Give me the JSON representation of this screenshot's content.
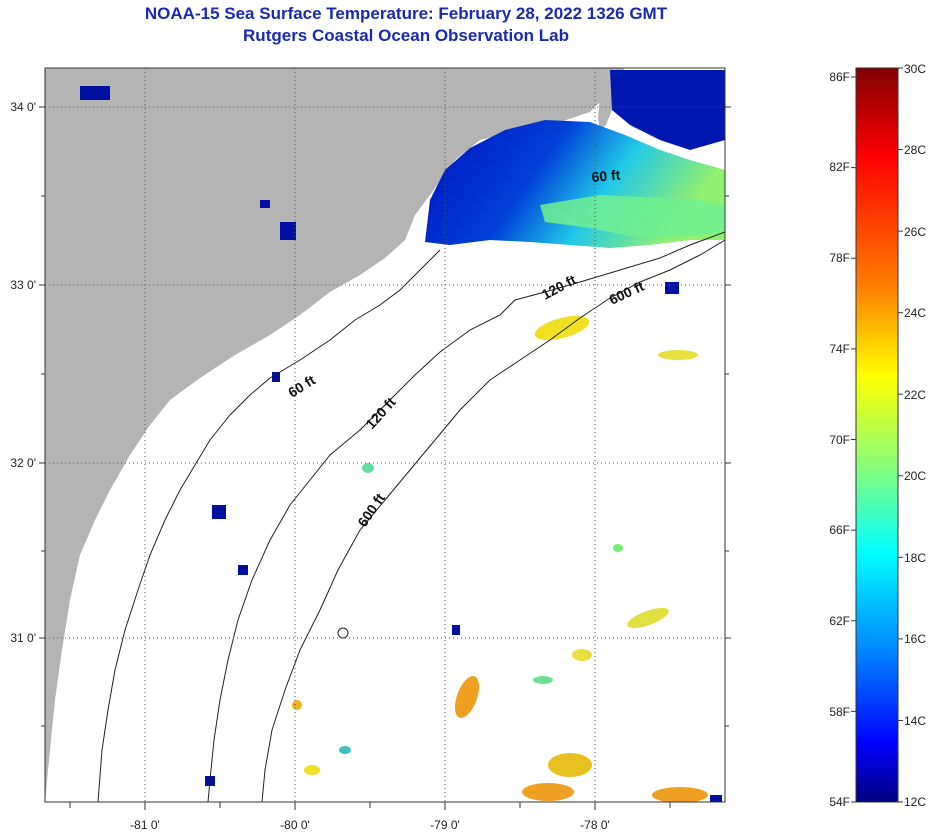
{
  "title": "NOAA-15 Sea Surface Temperature:  February 28, 2022 1326 GMT",
  "subtitle": "Rutgers Coastal Ocean Observation Lab",
  "map": {
    "lon_ticks": [
      "-81 0'",
      "-80 0'",
      "-79 0'",
      "-78 0'"
    ],
    "lat_ticks": [
      "34 0'",
      "33 0'",
      "32 0'",
      "31 0'"
    ],
    "isobath_labels": [
      "60 ft",
      "120 ft",
      "600 ft",
      "60 ft",
      "120 ft",
      "600 ft"
    ],
    "colors": {
      "land": "#b4b4b4",
      "ocean_no_data": "#ffffff",
      "grid": "#555555"
    }
  },
  "colorbar": {
    "fahrenheit_labels": [
      "86F",
      "82F",
      "78F",
      "74F",
      "70F",
      "66F",
      "62F",
      "58F",
      "54F"
    ],
    "celsius_labels": [
      "30C",
      "28C",
      "26C",
      "24C",
      "22C",
      "20C",
      "18C",
      "16C",
      "14C",
      "12C"
    ],
    "range_c": [
      12,
      30
    ],
    "colormap": [
      "#800000",
      "#ff0000",
      "#ff8000",
      "#ffff00",
      "#80ff80",
      "#00ffff",
      "#0080ff",
      "#0000ff",
      "#000080"
    ]
  }
}
